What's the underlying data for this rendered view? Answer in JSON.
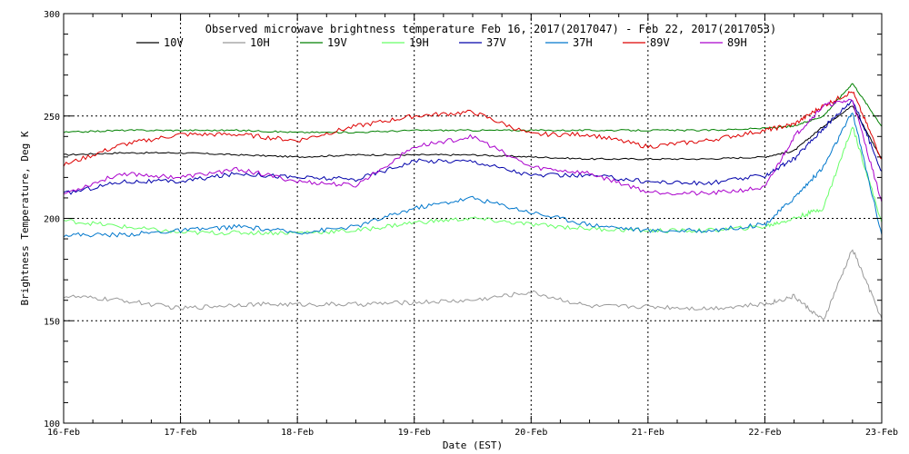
{
  "chart_data": {
    "type": "line",
    "title": "Observed microwave brightness temperature Feb 16, 2017(2017047) - Feb 22, 2017(2017053)",
    "xlabel": "Date (EST)",
    "ylabel": "Brightness Temperature, Deg K",
    "xlim": [
      "2017-02-16",
      "2017-02-23"
    ],
    "ylim": [
      100,
      300
    ],
    "x_ticks": [
      "16-Feb",
      "17-Feb",
      "18-Feb",
      "19-Feb",
      "20-Feb",
      "21-Feb",
      "22-Feb",
      "23-Feb"
    ],
    "y_ticks": [
      "100",
      "150",
      "200",
      "250",
      "300"
    ],
    "grid": "dotted",
    "legend_placement": "top",
    "x": [
      "2017-02-16 00:00",
      "2017-02-16 12:00",
      "2017-02-17 00:00",
      "2017-02-17 12:00",
      "2017-02-18 00:00",
      "2017-02-18 12:00",
      "2017-02-19 00:00",
      "2017-02-19 12:00",
      "2017-02-20 00:00",
      "2017-02-20 12:00",
      "2017-02-21 00:00",
      "2017-02-21 12:00",
      "2017-02-22 00:00",
      "2017-02-22 06:00",
      "2017-02-22 12:00",
      "2017-02-22 18:00",
      "2017-02-23 00:00"
    ],
    "series": [
      {
        "name": "10V",
        "color": "#000000",
        "values": [
          231,
          232,
          232,
          231,
          230,
          231,
          231,
          231,
          230,
          229,
          229,
          229,
          230,
          233,
          245,
          255,
          229
        ]
      },
      {
        "name": "10H",
        "color": "#999999",
        "values": [
          162,
          160,
          156,
          158,
          158,
          158,
          159,
          160,
          164,
          157,
          157,
          156,
          158,
          162,
          150,
          185,
          151
        ]
      },
      {
        "name": "19V",
        "color": "#008000",
        "values": [
          242,
          243,
          243,
          243,
          242,
          242,
          243,
          243,
          243,
          243,
          243,
          243,
          244,
          245,
          250,
          266,
          245
        ]
      },
      {
        "name": "19H",
        "color": "#66ff66",
        "values": [
          199,
          196,
          193,
          193,
          193,
          194,
          198,
          200,
          197,
          195,
          194,
          194,
          196,
          200,
          205,
          245,
          198
        ]
      },
      {
        "name": "37V",
        "color": "#0000aa",
        "values": [
          212,
          218,
          218,
          222,
          220,
          219,
          228,
          228,
          221,
          221,
          218,
          217,
          221,
          229,
          244,
          258,
          223
        ]
      },
      {
        "name": "37H",
        "color": "#0077cc",
        "values": [
          192,
          192,
          194,
          196,
          193,
          196,
          205,
          210,
          203,
          197,
          194,
          194,
          197,
          210,
          225,
          252,
          192
        ]
      },
      {
        "name": "89V",
        "color": "#dd0000",
        "values": [
          226,
          236,
          241,
          241,
          238,
          245,
          250,
          252,
          241,
          241,
          235,
          238,
          243,
          246,
          255,
          262,
          229
        ]
      },
      {
        "name": "89H",
        "color": "#aa00cc",
        "values": [
          212,
          222,
          220,
          224,
          218,
          216,
          235,
          240,
          225,
          222,
          213,
          212,
          215,
          240,
          255,
          258,
          208
        ]
      }
    ]
  }
}
